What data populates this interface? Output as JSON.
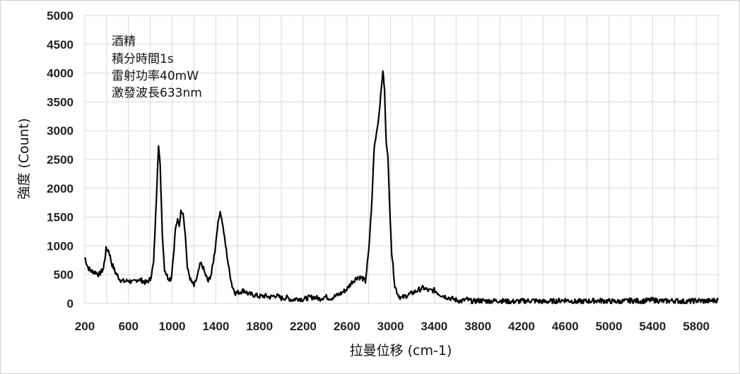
{
  "chart_data": {
    "type": "line",
    "xlabel": "拉曼位移 (cm-1)",
    "ylabel": "強度 (Count)",
    "xlim": [
      200,
      6000
    ],
    "ylim": [
      0,
      5000
    ],
    "grid": true,
    "x_ticks": [
      200,
      600,
      1000,
      1400,
      1800,
      2200,
      2600,
      3000,
      3400,
      3800,
      4200,
      4600,
      5000,
      5400,
      5800
    ],
    "y_ticks": [
      0,
      500,
      1000,
      1500,
      2000,
      2500,
      3000,
      3500,
      4000,
      4500,
      5000
    ],
    "annotation": [
      "酒精",
      "積分時間1s",
      "雷射功率40mW",
      "激發波長633nm"
    ],
    "series": [
      {
        "color": "#000000",
        "points": [
          [
            200,
            800
          ],
          [
            230,
            620
          ],
          [
            260,
            560
          ],
          [
            300,
            540
          ],
          [
            330,
            500
          ],
          [
            370,
            600
          ],
          [
            395,
            940
          ],
          [
            420,
            920
          ],
          [
            445,
            700
          ],
          [
            480,
            540
          ],
          [
            520,
            420
          ],
          [
            560,
            380
          ],
          [
            600,
            400
          ],
          [
            640,
            360
          ],
          [
            680,
            420
          ],
          [
            720,
            400
          ],
          [
            760,
            360
          ],
          [
            800,
            420
          ],
          [
            830,
            700
          ],
          [
            855,
            1800
          ],
          [
            875,
            2760
          ],
          [
            890,
            2400
          ],
          [
            910,
            1200
          ],
          [
            930,
            600
          ],
          [
            960,
            450
          ],
          [
            990,
            420
          ],
          [
            1010,
            800
          ],
          [
            1030,
            1300
          ],
          [
            1050,
            1450
          ],
          [
            1065,
            1350
          ],
          [
            1080,
            1600
          ],
          [
            1100,
            1580
          ],
          [
            1120,
            1200
          ],
          [
            1140,
            600
          ],
          [
            1170,
            400
          ],
          [
            1200,
            300
          ],
          [
            1230,
            460
          ],
          [
            1260,
            700
          ],
          [
            1280,
            640
          ],
          [
            1300,
            520
          ],
          [
            1330,
            380
          ],
          [
            1360,
            520
          ],
          [
            1390,
            900
          ],
          [
            1420,
            1400
          ],
          [
            1440,
            1600
          ],
          [
            1460,
            1400
          ],
          [
            1490,
            1000
          ],
          [
            1520,
            600
          ],
          [
            1550,
            300
          ],
          [
            1580,
            180
          ],
          [
            1620,
            200
          ],
          [
            1660,
            230
          ],
          [
            1700,
            160
          ],
          [
            1750,
            150
          ],
          [
            1800,
            120
          ],
          [
            1850,
            130
          ],
          [
            1900,
            110
          ],
          [
            1950,
            140
          ],
          [
            2000,
            90
          ],
          [
            2050,
            100
          ],
          [
            2100,
            60
          ],
          [
            2150,
            90
          ],
          [
            2200,
            70
          ],
          [
            2250,
            100
          ],
          [
            2300,
            110
          ],
          [
            2350,
            80
          ],
          [
            2400,
            120
          ],
          [
            2450,
            90
          ],
          [
            2500,
            130
          ],
          [
            2550,
            180
          ],
          [
            2600,
            250
          ],
          [
            2650,
            380
          ],
          [
            2700,
            460
          ],
          [
            2740,
            440
          ],
          [
            2770,
            380
          ],
          [
            2800,
            900
          ],
          [
            2830,
            1800
          ],
          [
            2850,
            2700
          ],
          [
            2870,
            2950
          ],
          [
            2890,
            3200
          ],
          [
            2910,
            3600
          ],
          [
            2930,
            4050
          ],
          [
            2945,
            3700
          ],
          [
            2960,
            2800
          ],
          [
            2975,
            2600
          ],
          [
            2990,
            1800
          ],
          [
            3010,
            900
          ],
          [
            3040,
            300
          ],
          [
            3070,
            150
          ],
          [
            3100,
            90
          ],
          [
            3150,
            140
          ],
          [
            3200,
            180
          ],
          [
            3250,
            230
          ],
          [
            3300,
            270
          ],
          [
            3350,
            220
          ],
          [
            3400,
            230
          ],
          [
            3450,
            160
          ],
          [
            3500,
            120
          ],
          [
            3550,
            90
          ],
          [
            3600,
            60
          ],
          [
            3650,
            40
          ],
          [
            3700,
            70
          ],
          [
            3750,
            30
          ],
          [
            3800,
            50
          ],
          [
            3900,
            40
          ],
          [
            4000,
            50
          ],
          [
            4100,
            30
          ],
          [
            4200,
            40
          ],
          [
            4300,
            50
          ],
          [
            4400,
            30
          ],
          [
            4500,
            40
          ],
          [
            4600,
            60
          ],
          [
            4700,
            30
          ],
          [
            4800,
            40
          ],
          [
            4900,
            50
          ],
          [
            5000,
            40
          ],
          [
            5100,
            30
          ],
          [
            5200,
            50
          ],
          [
            5300,
            40
          ],
          [
            5400,
            60
          ],
          [
            5500,
            40
          ],
          [
            5600,
            50
          ],
          [
            5700,
            30
          ],
          [
            5800,
            50
          ],
          [
            5900,
            40
          ],
          [
            6000,
            60
          ]
        ]
      }
    ]
  }
}
